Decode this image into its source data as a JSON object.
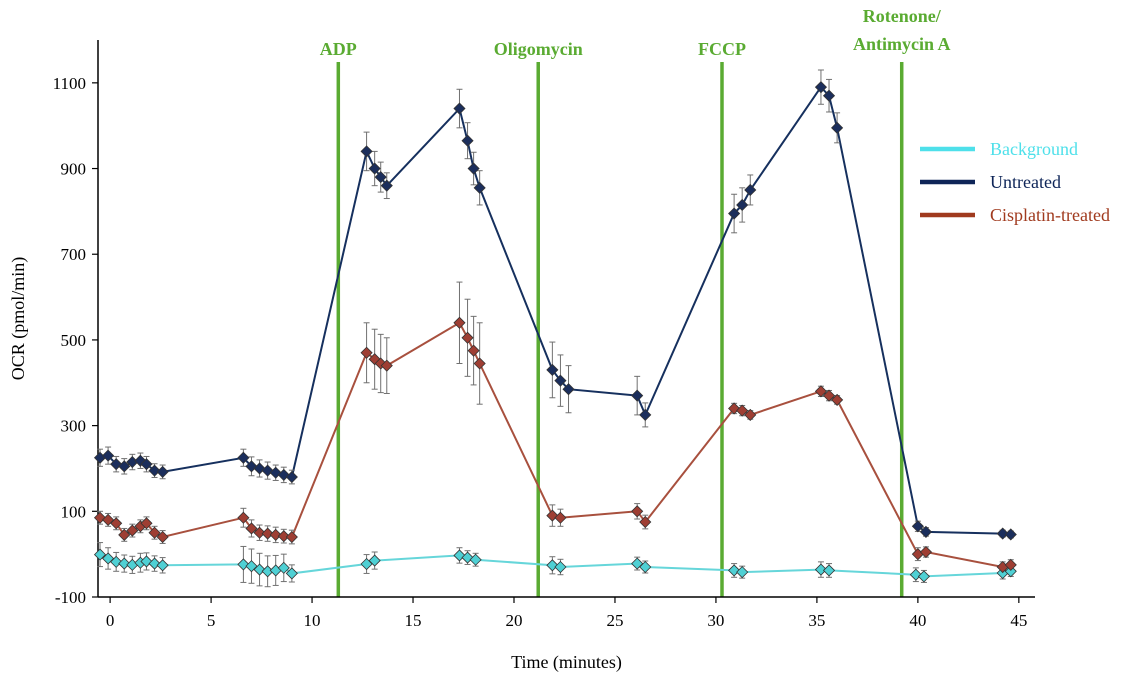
{
  "chart_data": {
    "type": "line",
    "title": "",
    "xlabel": "Time (minutes)",
    "ylabel": "OCR (pmol/min)",
    "xlim": [
      -0.6,
      45.8
    ],
    "ylim": [
      -100,
      1200
    ],
    "x_ticks": [
      0,
      5,
      10,
      15,
      20,
      25,
      30,
      35,
      40,
      45
    ],
    "y_ticks": [
      -100,
      100,
      300,
      500,
      700,
      900,
      1100
    ],
    "grid": false,
    "legend_position": "right",
    "injections": [
      {
        "name": "ADP",
        "x": 11.3
      },
      {
        "name": "Oligomycin",
        "x": 21.2
      },
      {
        "name": "FCCP",
        "x": 30.3
      },
      {
        "name": "Rotenone/ Antimycin A",
        "line1": "Rotenone/",
        "line2": "Antimycin A",
        "x": 39.2
      }
    ],
    "series": [
      {
        "name": "Background",
        "line_color": "#66d6da",
        "marker_color": "#4fd0d4",
        "legend_color": "#4ee0ea",
        "x": [
          -0.5,
          -0.1,
          0.3,
          0.7,
          1.1,
          1.5,
          1.8,
          2.2,
          2.6,
          6.6,
          7.0,
          7.4,
          7.8,
          8.2,
          8.6,
          9.0,
          12.7,
          13.1,
          17.3,
          17.7,
          18.1,
          21.9,
          22.3,
          26.1,
          26.5,
          30.9,
          31.3,
          35.2,
          35.6,
          39.9,
          40.3,
          44.2,
          44.6
        ],
        "y": [
          -1,
          -10,
          -18,
          -22,
          -25,
          -20,
          -17,
          -22,
          -26,
          -24,
          -28,
          -36,
          -40,
          -38,
          -32,
          -45,
          -23,
          -15,
          -3,
          -8,
          -13,
          -26,
          -30,
          -22,
          -30,
          -38,
          -42,
          -36,
          -38,
          -48,
          -52,
          -44,
          -40
        ],
        "err": [
          28,
          25,
          22,
          20,
          20,
          22,
          20,
          18,
          18,
          42,
          40,
          38,
          36,
          35,
          32,
          20,
          22,
          20,
          18,
          16,
          15,
          20,
          18,
          15,
          14,
          16,
          14,
          18,
          16,
          16,
          14,
          14,
          12
        ]
      },
      {
        "name": "Untreated",
        "line_color": "#16305e",
        "marker_color": "#1b2e5c",
        "legend_color": "#0e2558",
        "x": [
          -0.5,
          -0.1,
          0.3,
          0.7,
          1.1,
          1.5,
          1.8,
          2.2,
          2.6,
          6.6,
          7.0,
          7.4,
          7.8,
          8.2,
          8.6,
          9.0,
          12.7,
          13.1,
          13.4,
          13.7,
          17.3,
          17.7,
          18.0,
          18.3,
          21.9,
          22.3,
          22.7,
          26.1,
          26.5,
          30.9,
          31.3,
          31.7,
          35.2,
          35.6,
          36.0,
          40.0,
          40.4,
          44.2,
          44.6
        ],
        "y": [
          225,
          230,
          210,
          205,
          215,
          218,
          210,
          195,
          192,
          225,
          205,
          200,
          195,
          190,
          185,
          180,
          940,
          900,
          880,
          860,
          1040,
          965,
          900,
          855,
          430,
          405,
          385,
          370,
          325,
          795,
          815,
          850,
          1090,
          1070,
          995,
          65,
          52,
          48,
          46
        ],
        "err": [
          20,
          20,
          18,
          18,
          18,
          18,
          18,
          16,
          16,
          20,
          22,
          20,
          20,
          18,
          18,
          16,
          45,
          40,
          35,
          30,
          45,
          42,
          38,
          40,
          65,
          60,
          55,
          45,
          28,
          45,
          40,
          35,
          40,
          38,
          35,
          12,
          10,
          8,
          8
        ]
      },
      {
        "name": "Cisplatin-treated",
        "line_color": "#a8503e",
        "marker_color": "#9e3e33",
        "legend_color": "#a03a1e",
        "x": [
          -0.5,
          -0.1,
          0.3,
          0.7,
          1.1,
          1.5,
          1.8,
          2.2,
          2.6,
          6.6,
          7.0,
          7.4,
          7.8,
          8.2,
          8.6,
          9.0,
          12.7,
          13.1,
          13.4,
          13.7,
          17.3,
          17.7,
          18.0,
          18.3,
          21.9,
          22.3,
          26.1,
          26.5,
          30.9,
          31.3,
          31.7,
          35.2,
          35.6,
          36.0,
          40.0,
          40.4,
          44.2,
          44.6
        ],
        "y": [
          85,
          80,
          72,
          45,
          55,
          65,
          72,
          50,
          40,
          85,
          60,
          50,
          48,
          45,
          42,
          40,
          470,
          455,
          445,
          440,
          540,
          505,
          475,
          445,
          90,
          85,
          100,
          75,
          340,
          335,
          325,
          380,
          370,
          360,
          0,
          5,
          -30,
          -25
        ],
        "err": [
          15,
          15,
          15,
          15,
          15,
          15,
          15,
          15,
          15,
          22,
          20,
          18,
          18,
          18,
          16,
          16,
          70,
          70,
          68,
          65,
          95,
          90,
          80,
          95,
          25,
          20,
          18,
          16,
          12,
          12,
          10,
          12,
          12,
          10,
          15,
          12,
          12,
          12
        ]
      }
    ]
  }
}
